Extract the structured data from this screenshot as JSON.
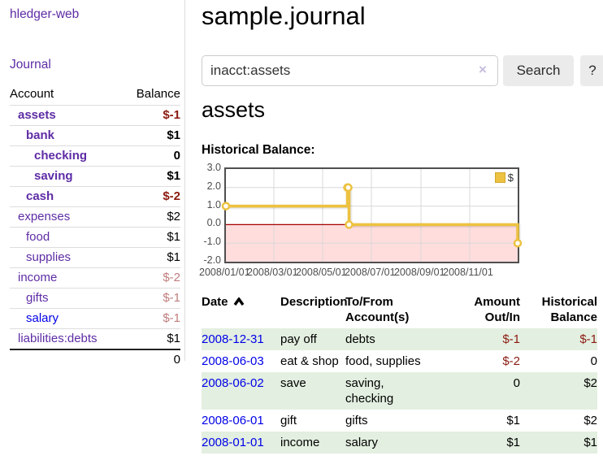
{
  "sidebar": {
    "app_title": "hledger-web",
    "journal_link": "Journal",
    "account_header": "Account",
    "balance_header": "Balance",
    "accounts": [
      {
        "name": "assets",
        "level": 0,
        "balance": "$-1",
        "emph": true
      },
      {
        "name": "bank",
        "level": 1,
        "balance": "$1",
        "emph": true
      },
      {
        "name": "checking",
        "level": 2,
        "balance": "0",
        "emph": true
      },
      {
        "name": "saving",
        "level": 2,
        "balance": "$1",
        "emph": true
      },
      {
        "name": "cash",
        "level": 1,
        "balance": "$-2",
        "emph": true
      },
      {
        "name": "expenses",
        "level": 0,
        "balance": "$2"
      },
      {
        "name": "food",
        "level": 1,
        "balance": "$1"
      },
      {
        "name": "supplies",
        "level": 1,
        "balance": "$1"
      },
      {
        "name": "income",
        "level": 0,
        "balance": "$-2"
      },
      {
        "name": "gifts",
        "level": 1,
        "balance": "$-1"
      },
      {
        "name": "salary",
        "level": 1,
        "balance": "$-1",
        "blue_link": true
      },
      {
        "name": "liabilities:debts",
        "level": 0,
        "balance": "$1"
      }
    ],
    "total": "0"
  },
  "main": {
    "title": "sample.journal",
    "search": {
      "value": "inacct:assets",
      "clear_label": "×",
      "button_label": "Search",
      "help_label": "?"
    },
    "account_heading": "assets",
    "section_label": "Historical Balance:"
  },
  "chart_data": {
    "type": "line",
    "title": "Historical Balance:",
    "step": true,
    "series": [
      {
        "name": "$",
        "color": "#edc240",
        "points": [
          {
            "date": "2008-01-01",
            "value": 1
          },
          {
            "date": "2008-06-01",
            "value": 2
          },
          {
            "date": "2008-06-02",
            "value": 2
          },
          {
            "date": "2008-06-03",
            "value": 0
          },
          {
            "date": "2008-12-31",
            "value": -1
          }
        ]
      }
    ],
    "x_ticks": [
      "2008/01/01",
      "2008/03/01",
      "2008/05/01",
      "2008/07/01",
      "2008/09/01",
      "2008/11/01"
    ],
    "y_ticks": [
      "3.0",
      "2.0",
      "1.0",
      "0.0",
      "-1.0",
      "-2.0"
    ],
    "ylim": [
      -2,
      3
    ],
    "x_start": "2008-01-01",
    "x_range_days": 365,
    "grid": true,
    "legend_position": "top-right",
    "negative_region_color": "#ffdddd",
    "zero_line_color": "#a40000",
    "gridline_color": "#d8d8d8"
  },
  "txn_table": {
    "headers": [
      "Date",
      "Description",
      "To/From\nAccount(s)",
      "Amount\nOut/In",
      "Historical\nBalance"
    ],
    "sorted_column": "Date",
    "sort_direction": "ascending",
    "rows": [
      {
        "date": "2008-12-31",
        "description": "pay off",
        "accounts": "debts",
        "amount": "$-1",
        "balance": "$-1"
      },
      {
        "date": "2008-06-03",
        "description": "eat & shop",
        "accounts": "food, supplies",
        "amount": "$-2",
        "balance": "0"
      },
      {
        "date": "2008-06-02",
        "description": "save",
        "accounts": "saving,\nchecking",
        "amount": "0",
        "balance": "$2"
      },
      {
        "date": "2008-06-01",
        "description": "gift",
        "accounts": "gifts",
        "amount": "$1",
        "balance": "$2"
      },
      {
        "date": "2008-01-01",
        "description": "income",
        "accounts": "salary",
        "amount": "$1",
        "balance": "$1"
      }
    ]
  },
  "colors": {
    "link_purple": "#5e2ca5",
    "link_blue": "#0000e8",
    "negative_strong": "#8b1a10",
    "negative_soft": "#c17d7d",
    "row_shade_green": "#e3efe0",
    "series_gold": "#edc240",
    "negative_region_pink": "#ffdddd",
    "zero_line_red": "#a40000"
  }
}
